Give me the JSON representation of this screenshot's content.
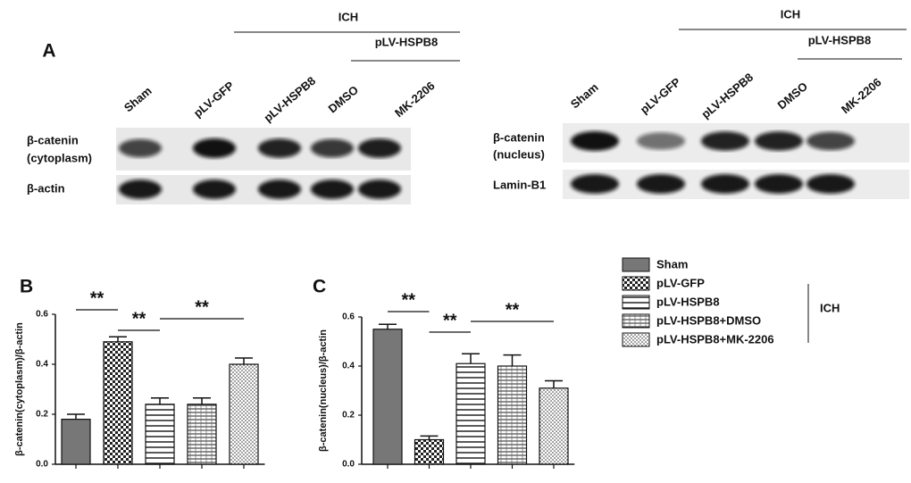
{
  "panel_a": {
    "label": "A",
    "left": {
      "group": "ICH",
      "subgroup": "pLV-HSPB8",
      "lanes": [
        "Sham",
        "pLV-GFP",
        "pLV-HSPB8",
        "DMSO",
        "MK-2206"
      ],
      "rows": [
        [
          "β-catenin",
          "(cytoplasm)"
        ],
        [
          "β-actin"
        ]
      ]
    },
    "right": {
      "group": "ICH",
      "subgroup": "pLV-HSPB8",
      "lanes": [
        "Sham",
        "pLV-GFP",
        "pLV-HSPB8",
        "DMSO",
        "MK-2206"
      ],
      "rows": [
        [
          "β-catenin",
          "(nucleus)"
        ],
        [
          "Lamin-B1"
        ]
      ]
    }
  },
  "legend": {
    "items": [
      "Sham",
      "pLV-GFP",
      "pLV-HSPB8",
      "pLV-HSPB8+DMSO",
      "pLV-HSPB8+MK-2206"
    ],
    "group": "ICH"
  },
  "chart_data": [
    {
      "type": "bar",
      "panel": "B",
      "y_label": "β-catenin(cytoplasm)/β-actin",
      "categories": [
        null,
        null,
        null,
        null,
        null
      ],
      "values": [
        0.18,
        0.49,
        0.24,
        0.24,
        0.4
      ],
      "errors": [
        0.02,
        0.02,
        0.025,
        0.025,
        0.025
      ],
      "ylim": [
        0,
        0.6
      ],
      "yticks": [
        {
          "value": 0,
          "label": "0.0"
        },
        0.2,
        0.4,
        0.6
      ],
      "annotations": [
        {
          "text": "**",
          "between": [
            0,
            1
          ]
        },
        {
          "text": "**",
          "between": [
            1,
            2
          ]
        },
        {
          "text": "**",
          "between": [
            2,
            4
          ]
        }
      ]
    },
    {
      "type": "bar",
      "panel": "C",
      "y_label": "β-catenin(nucleus)/β-actin",
      "categories": [
        null,
        null,
        null,
        null,
        null
      ],
      "values": [
        0.55,
        0.1,
        0.41,
        0.4,
        0.31
      ],
      "errors": [
        0.02,
        0.015,
        0.04,
        0.045,
        0.03
      ],
      "ylim": [
        0,
        0.6
      ],
      "yticks": [
        {
          "value": 0,
          "label": "0.0"
        },
        0.2,
        0.4,
        0.6
      ],
      "annotations": [
        {
          "text": "**",
          "between": [
            0,
            1
          ]
        },
        {
          "text": "**",
          "between": [
            1,
            2
          ]
        },
        {
          "text": "**",
          "between": [
            2,
            4
          ]
        }
      ]
    }
  ]
}
